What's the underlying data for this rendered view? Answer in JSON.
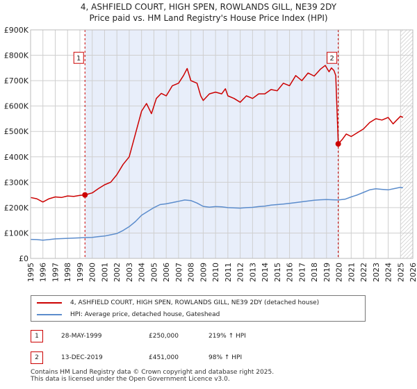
{
  "title_line1": "4, ASHFIELD COURT, HIGH SPEN, ROWLANDS GILL, NE39 2DY",
  "title_line2": "Price paid vs. HM Land Registry's House Price Index (HPI)",
  "chart_data": {
    "type": "line",
    "title": "4, ASHFIELD COURT, HIGH SPEN, ROWLANDS GILL, NE39 2DY - Price paid vs. HM Land Registry's House Price Index (HPI)",
    "xlim": [
      1995,
      2026
    ],
    "ylim": [
      0,
      900000
    ],
    "x_ticks": [
      "1995",
      "1996",
      "1997",
      "1998",
      "1999",
      "2000",
      "2001",
      "2002",
      "2003",
      "2004",
      "2005",
      "2006",
      "2007",
      "2008",
      "2009",
      "2010",
      "2011",
      "2012",
      "2013",
      "2014",
      "2015",
      "2016",
      "2017",
      "2018",
      "2019",
      "2020",
      "2021",
      "2022",
      "2023",
      "2024",
      "2025",
      "2026"
    ],
    "y_ticks": [
      {
        "value": 0,
        "label": "£0"
      },
      {
        "value": 100000,
        "label": "£100K"
      },
      {
        "value": 200000,
        "label": "£200K"
      },
      {
        "value": 300000,
        "label": "£300K"
      },
      {
        "value": 400000,
        "label": "£400K"
      },
      {
        "value": 500000,
        "label": "£500K"
      },
      {
        "value": 600000,
        "label": "£600K"
      },
      {
        "value": 700000,
        "label": "£700K"
      },
      {
        "value": 800000,
        "label": "£800K"
      },
      {
        "value": 900000,
        "label": "£900K"
      }
    ],
    "shaded_period": [
      1999.41,
      2019.95
    ],
    "hatched_after": 2025.0,
    "series": [
      {
        "name": "4, ASHFIELD COURT, HIGH SPEN, ROWLANDS GILL, NE39 2DY (detached house)",
        "color": "#cc0000",
        "points": [
          [
            1995.0,
            240000
          ],
          [
            1995.5,
            235000
          ],
          [
            1996.0,
            222000
          ],
          [
            1996.5,
            235000
          ],
          [
            1997.0,
            242000
          ],
          [
            1997.5,
            240000
          ],
          [
            1998.0,
            246000
          ],
          [
            1998.5,
            244000
          ],
          [
            1999.0,
            248000
          ],
          [
            1999.41,
            250000
          ],
          [
            2000.0,
            258000
          ],
          [
            2000.5,
            275000
          ],
          [
            2001.0,
            290000
          ],
          [
            2001.5,
            300000
          ],
          [
            2002.0,
            330000
          ],
          [
            2002.5,
            370000
          ],
          [
            2003.0,
            400000
          ],
          [
            2003.5,
            490000
          ],
          [
            2004.0,
            580000
          ],
          [
            2004.4,
            610000
          ],
          [
            2004.8,
            570000
          ],
          [
            2005.2,
            630000
          ],
          [
            2005.6,
            650000
          ],
          [
            2006.0,
            640000
          ],
          [
            2006.5,
            680000
          ],
          [
            2007.0,
            690000
          ],
          [
            2007.4,
            720000
          ],
          [
            2007.7,
            748000
          ],
          [
            2008.0,
            700000
          ],
          [
            2008.5,
            690000
          ],
          [
            2008.8,
            640000
          ],
          [
            2009.0,
            622000
          ],
          [
            2009.5,
            648000
          ],
          [
            2010.0,
            655000
          ],
          [
            2010.5,
            648000
          ],
          [
            2010.8,
            668000
          ],
          [
            2011.0,
            640000
          ],
          [
            2011.5,
            630000
          ],
          [
            2012.0,
            615000
          ],
          [
            2012.5,
            640000
          ],
          [
            2013.0,
            630000
          ],
          [
            2013.5,
            648000
          ],
          [
            2014.0,
            648000
          ],
          [
            2014.5,
            665000
          ],
          [
            2015.0,
            660000
          ],
          [
            2015.5,
            690000
          ],
          [
            2016.0,
            680000
          ],
          [
            2016.5,
            720000
          ],
          [
            2017.0,
            700000
          ],
          [
            2017.5,
            730000
          ],
          [
            2018.0,
            718000
          ],
          [
            2018.5,
            745000
          ],
          [
            2018.9,
            760000
          ],
          [
            2019.2,
            735000
          ],
          [
            2019.4,
            750000
          ],
          [
            2019.6,
            740000
          ],
          [
            2019.75,
            720000
          ],
          [
            2019.95,
            451000
          ],
          [
            2020.3,
            470000
          ],
          [
            2020.6,
            490000
          ],
          [
            2021.0,
            480000
          ],
          [
            2021.5,
            495000
          ],
          [
            2022.0,
            510000
          ],
          [
            2022.5,
            535000
          ],
          [
            2023.0,
            550000
          ],
          [
            2023.5,
            545000
          ],
          [
            2024.0,
            555000
          ],
          [
            2024.4,
            530000
          ],
          [
            2024.7,
            545000
          ],
          [
            2025.0,
            560000
          ],
          [
            2025.2,
            555000
          ]
        ]
      },
      {
        "name": "HPI: Average price, detached house, Gateshead",
        "color": "#5b8ccc",
        "points": [
          [
            1995.0,
            75000
          ],
          [
            1995.5,
            74000
          ],
          [
            1996.0,
            72000
          ],
          [
            1996.5,
            74000
          ],
          [
            1997.0,
            77000
          ],
          [
            1997.5,
            78000
          ],
          [
            1998.0,
            79000
          ],
          [
            1998.5,
            80000
          ],
          [
            1999.0,
            81000
          ],
          [
            1999.41,
            82000
          ],
          [
            2000.0,
            83000
          ],
          [
            2000.5,
            86000
          ],
          [
            2001.0,
            88000
          ],
          [
            2001.5,
            93000
          ],
          [
            2002.0,
            98000
          ],
          [
            2002.5,
            110000
          ],
          [
            2003.0,
            125000
          ],
          [
            2003.5,
            145000
          ],
          [
            2004.0,
            170000
          ],
          [
            2004.5,
            185000
          ],
          [
            2005.0,
            200000
          ],
          [
            2005.5,
            212000
          ],
          [
            2006.0,
            215000
          ],
          [
            2006.5,
            220000
          ],
          [
            2007.0,
            225000
          ],
          [
            2007.5,
            230000
          ],
          [
            2008.0,
            228000
          ],
          [
            2008.5,
            218000
          ],
          [
            2009.0,
            205000
          ],
          [
            2009.5,
            202000
          ],
          [
            2010.0,
            204000
          ],
          [
            2010.5,
            203000
          ],
          [
            2011.0,
            200000
          ],
          [
            2011.5,
            199000
          ],
          [
            2012.0,
            198000
          ],
          [
            2012.5,
            200000
          ],
          [
            2013.0,
            201000
          ],
          [
            2013.5,
            204000
          ],
          [
            2014.0,
            206000
          ],
          [
            2014.5,
            210000
          ],
          [
            2015.0,
            212000
          ],
          [
            2015.5,
            214000
          ],
          [
            2016.0,
            217000
          ],
          [
            2016.5,
            220000
          ],
          [
            2017.0,
            223000
          ],
          [
            2017.5,
            226000
          ],
          [
            2018.0,
            229000
          ],
          [
            2018.5,
            231000
          ],
          [
            2019.0,
            232000
          ],
          [
            2019.5,
            231000
          ],
          [
            2019.95,
            230000
          ],
          [
            2020.5,
            233000
          ],
          [
            2021.0,
            242000
          ],
          [
            2021.5,
            250000
          ],
          [
            2022.0,
            260000
          ],
          [
            2022.5,
            270000
          ],
          [
            2023.0,
            274000
          ],
          [
            2023.5,
            272000
          ],
          [
            2024.0,
            270000
          ],
          [
            2024.5,
            275000
          ],
          [
            2025.0,
            280000
          ],
          [
            2025.2,
            278000
          ]
        ]
      }
    ],
    "markers": [
      {
        "label": "1",
        "x": 1999.41,
        "y": 250000,
        "box_value": 790000
      },
      {
        "label": "2",
        "x": 2019.95,
        "y": 451000,
        "box_value": 790000
      }
    ]
  },
  "sales": [
    {
      "num": "1",
      "date": "28-MAY-1999",
      "price": "£250,000",
      "hpi": "219% ↑ HPI"
    },
    {
      "num": "2",
      "date": "13-DEC-2019",
      "price": "£451,000",
      "hpi": "98% ↑ HPI"
    }
  ],
  "footer_line1": "Contains HM Land Registry data © Crown copyright and database right 2025.",
  "footer_line2": "This data is licensed under the Open Government Licence v3.0."
}
